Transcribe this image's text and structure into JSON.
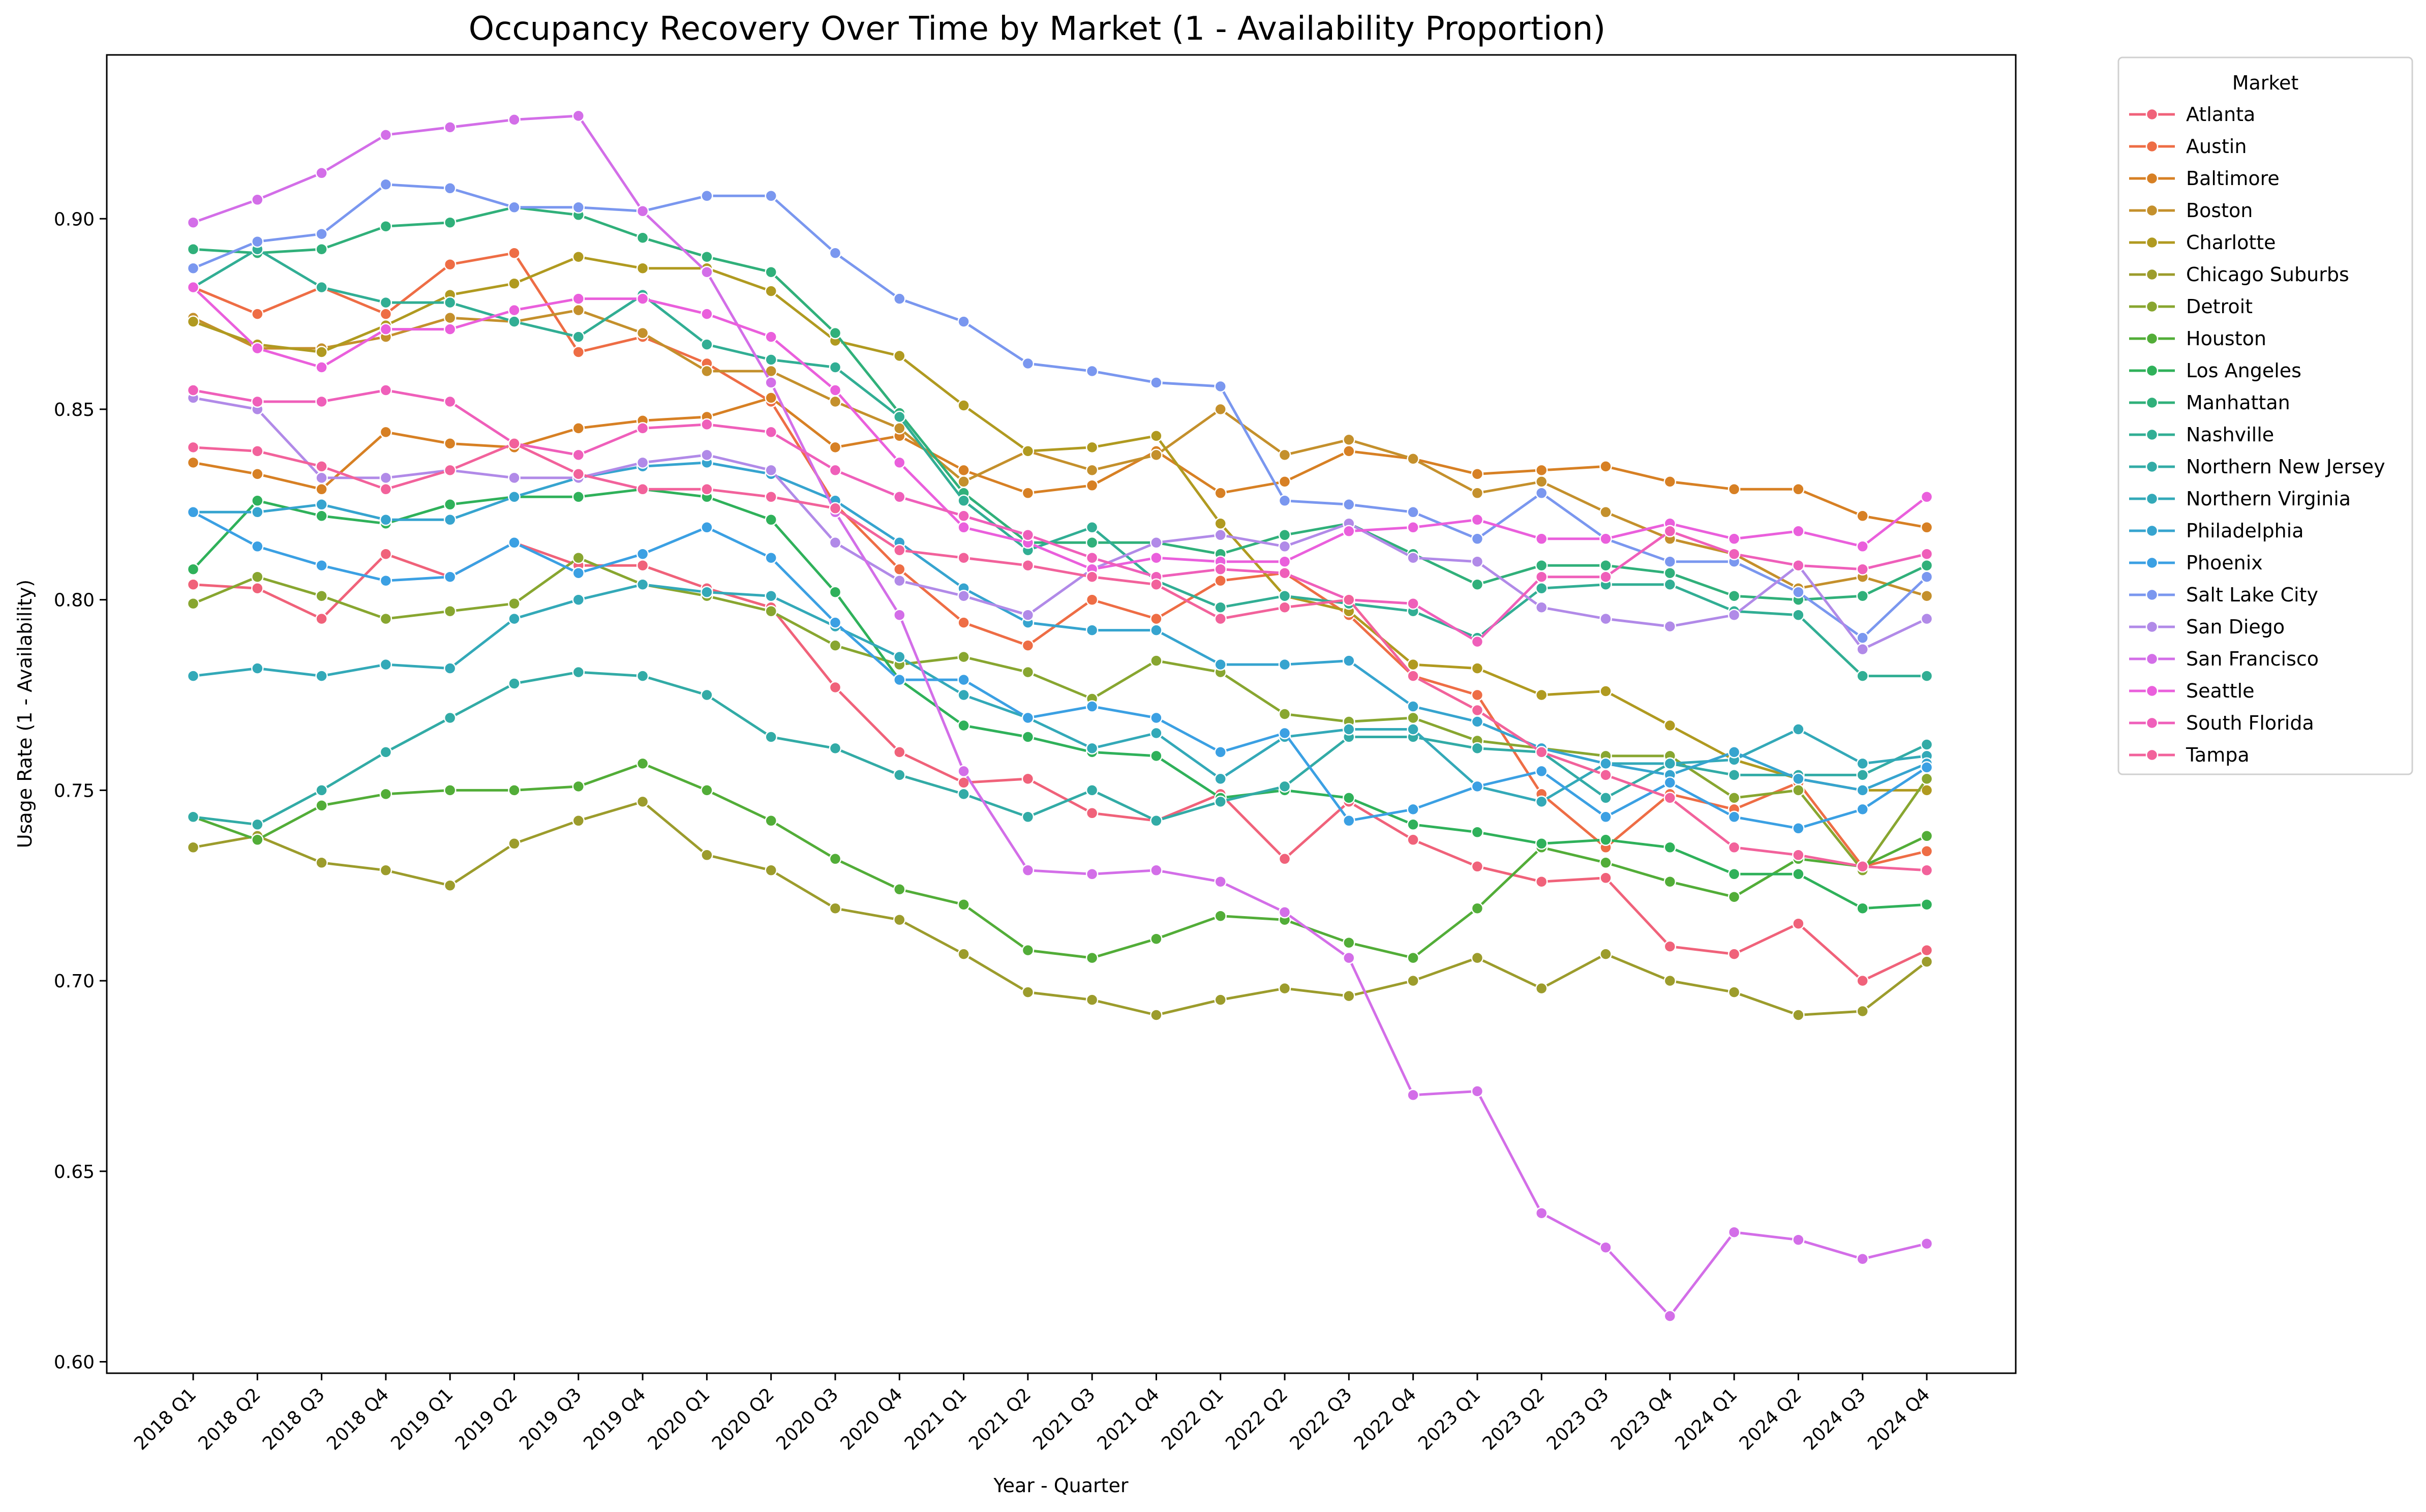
{
  "chart_data": {
    "type": "line",
    "title": "Occupancy Recovery Over Time by Market (1 - Availability Proportion)",
    "xlabel": "Year - Quarter",
    "ylabel": "Usage Rate (1 - Availability)",
    "ylim": [
      0.597,
      0.943
    ],
    "yticks": [
      0.6,
      0.65,
      0.7,
      0.75,
      0.8,
      0.85,
      0.9
    ],
    "ytick_labels": [
      "0.60",
      "0.65",
      "0.70",
      "0.75",
      "0.80",
      "0.85",
      "0.90"
    ],
    "grid": false,
    "legend_title": "Market",
    "legend_position": "outside-top-right",
    "categories": [
      "2018 Q1",
      "2018 Q2",
      "2018 Q3",
      "2018 Q4",
      "2019 Q1",
      "2019 Q2",
      "2019 Q3",
      "2019 Q4",
      "2020 Q1",
      "2020 Q2",
      "2020 Q3",
      "2020 Q4",
      "2021 Q1",
      "2021 Q2",
      "2021 Q3",
      "2021 Q4",
      "2022 Q1",
      "2022 Q2",
      "2022 Q3",
      "2022 Q4",
      "2023 Q1",
      "2023 Q2",
      "2023 Q3",
      "2023 Q4",
      "2024 Q1",
      "2024 Q2",
      "2024 Q3",
      "2024 Q4"
    ],
    "series": [
      {
        "name": "Atlanta",
        "color": "#f0627a",
        "values": [
          0.804,
          0.803,
          0.795,
          0.812,
          0.806,
          0.815,
          0.809,
          0.809,
          0.803,
          0.798,
          0.777,
          0.76,
          0.752,
          0.753,
          0.744,
          0.742,
          0.749,
          0.732,
          0.747,
          0.737,
          0.73,
          0.726,
          0.727,
          0.709,
          0.707,
          0.715,
          0.7,
          0.708
        ]
      },
      {
        "name": "Austin",
        "color": "#ee6d45",
        "values": [
          0.882,
          0.875,
          0.882,
          0.875,
          0.888,
          0.891,
          0.865,
          0.869,
          0.862,
          0.852,
          0.825,
          0.808,
          0.794,
          0.788,
          0.8,
          0.795,
          0.805,
          0.807,
          0.796,
          0.78,
          0.775,
          0.749,
          0.735,
          0.749,
          0.745,
          0.752,
          0.73,
          0.734
        ]
      },
      {
        "name": "Baltimore",
        "color": "#d78024",
        "values": [
          0.836,
          0.833,
          0.829,
          0.844,
          0.841,
          0.84,
          0.845,
          0.847,
          0.848,
          0.853,
          0.84,
          0.843,
          0.834,
          0.828,
          0.83,
          0.839,
          0.828,
          0.831,
          0.839,
          0.837,
          0.833,
          0.834,
          0.835,
          0.831,
          0.829,
          0.829,
          0.822,
          0.819
        ]
      },
      {
        "name": "Boston",
        "color": "#c4902c",
        "values": [
          0.874,
          0.866,
          0.866,
          0.869,
          0.874,
          0.873,
          0.876,
          0.87,
          0.86,
          0.86,
          0.852,
          0.845,
          0.831,
          0.839,
          0.834,
          0.838,
          0.85,
          0.838,
          0.842,
          0.837,
          0.828,
          0.831,
          0.823,
          0.816,
          0.812,
          0.803,
          0.806,
          0.801
        ]
      },
      {
        "name": "Charlotte",
        "color": "#b09a20",
        "values": [
          0.873,
          0.867,
          0.865,
          0.872,
          0.88,
          0.883,
          0.89,
          0.887,
          0.887,
          0.881,
          0.868,
          0.864,
          0.851,
          0.839,
          0.84,
          0.843,
          0.82,
          0.801,
          0.797,
          0.783,
          0.782,
          0.775,
          0.776,
          0.767,
          0.758,
          0.753,
          0.75,
          0.75
        ]
      },
      {
        "name": "Chicago Suburbs",
        "color": "#9c9c2c",
        "values": [
          0.735,
          0.738,
          0.731,
          0.729,
          0.725,
          0.736,
          0.742,
          0.747,
          0.733,
          0.729,
          0.719,
          0.716,
          0.707,
          0.697,
          0.695,
          0.691,
          0.695,
          0.698,
          0.696,
          0.7,
          0.706,
          0.698,
          0.707,
          0.7,
          0.697,
          0.691,
          0.692,
          0.705
        ]
      },
      {
        "name": "Detroit",
        "color": "#88a630",
        "values": [
          0.799,
          0.806,
          0.801,
          0.795,
          0.797,
          0.799,
          0.811,
          0.804,
          0.801,
          0.797,
          0.788,
          0.783,
          0.785,
          0.781,
          0.774,
          0.784,
          0.781,
          0.77,
          0.768,
          0.769,
          0.763,
          0.761,
          0.759,
          0.759,
          0.748,
          0.75,
          0.729,
          0.753
        ]
      },
      {
        "name": "Houston",
        "color": "#52ad38",
        "values": [
          0.743,
          0.737,
          0.746,
          0.749,
          0.75,
          0.75,
          0.751,
          0.757,
          0.75,
          0.742,
          0.732,
          0.724,
          0.72,
          0.708,
          0.706,
          0.711,
          0.717,
          0.716,
          0.71,
          0.706,
          0.719,
          0.735,
          0.731,
          0.726,
          0.722,
          0.732,
          0.73,
          0.738
        ]
      },
      {
        "name": "Los Angeles",
        "color": "#2fb15a",
        "values": [
          0.808,
          0.826,
          0.822,
          0.82,
          0.825,
          0.827,
          0.827,
          0.829,
          0.827,
          0.821,
          0.802,
          0.779,
          0.767,
          0.764,
          0.76,
          0.759,
          0.748,
          0.75,
          0.748,
          0.741,
          0.739,
          0.736,
          0.737,
          0.735,
          0.728,
          0.728,
          0.719,
          0.72
        ]
      },
      {
        "name": "Manhattan",
        "color": "#30b07a",
        "values": [
          0.892,
          0.891,
          0.892,
          0.898,
          0.899,
          0.903,
          0.901,
          0.895,
          0.89,
          0.886,
          0.87,
          0.849,
          0.828,
          0.815,
          0.815,
          0.815,
          0.812,
          0.817,
          0.82,
          0.812,
          0.804,
          0.809,
          0.809,
          0.807,
          0.801,
          0.8,
          0.801,
          0.809
        ]
      },
      {
        "name": "Nashville",
        "color": "#31ae94",
        "values": [
          0.882,
          0.892,
          0.882,
          0.878,
          0.878,
          0.873,
          0.869,
          0.88,
          0.867,
          0.863,
          0.861,
          0.848,
          0.826,
          0.813,
          0.819,
          0.805,
          0.798,
          0.801,
          0.799,
          0.797,
          0.79,
          0.803,
          0.804,
          0.804,
          0.797,
          0.796,
          0.78,
          0.78
        ]
      },
      {
        "name": "Northern New Jersey",
        "color": "#32aba6",
        "values": [
          0.743,
          0.741,
          0.75,
          0.76,
          0.769,
          0.778,
          0.781,
          0.78,
          0.775,
          0.764,
          0.761,
          0.754,
          0.749,
          0.743,
          0.75,
          0.742,
          0.747,
          0.751,
          0.764,
          0.764,
          0.761,
          0.76,
          0.748,
          0.757,
          0.754,
          0.754,
          0.754,
          0.762
        ]
      },
      {
        "name": "Northern Virginia",
        "color": "#33a9b8",
        "values": [
          0.78,
          0.782,
          0.78,
          0.783,
          0.782,
          0.795,
          0.8,
          0.804,
          0.802,
          0.801,
          0.793,
          0.785,
          0.775,
          0.769,
          0.761,
          0.765,
          0.753,
          0.764,
          0.766,
          0.766,
          0.751,
          0.747,
          0.757,
          0.757,
          0.758,
          0.766,
          0.757,
          0.759
        ]
      },
      {
        "name": "Philadelphia",
        "color": "#36a4cf",
        "values": [
          0.823,
          0.823,
          0.825,
          0.821,
          0.821,
          0.827,
          0.832,
          0.835,
          0.836,
          0.833,
          0.826,
          0.815,
          0.803,
          0.794,
          0.792,
          0.792,
          0.783,
          0.783,
          0.784,
          0.772,
          0.768,
          0.761,
          0.757,
          0.754,
          0.76,
          0.753,
          0.75,
          0.757
        ]
      },
      {
        "name": "Phoenix",
        "color": "#3ba0e3",
        "values": [
          0.823,
          0.814,
          0.809,
          0.805,
          0.806,
          0.815,
          0.807,
          0.812,
          0.819,
          0.811,
          0.794,
          0.779,
          0.779,
          0.769,
          0.772,
          0.769,
          0.76,
          0.765,
          0.742,
          0.745,
          0.751,
          0.755,
          0.743,
          0.752,
          0.743,
          0.74,
          0.745,
          0.756
        ]
      },
      {
        "name": "Salt Lake City",
        "color": "#7a97ef",
        "values": [
          0.887,
          0.894,
          0.896,
          0.909,
          0.908,
          0.903,
          0.903,
          0.902,
          0.906,
          0.906,
          0.891,
          0.879,
          0.873,
          0.862,
          0.86,
          0.857,
          0.856,
          0.826,
          0.825,
          0.823,
          0.816,
          0.828,
          0.816,
          0.81,
          0.81,
          0.802,
          0.79,
          0.806
        ]
      },
      {
        "name": "San Diego",
        "color": "#b18ae8",
        "values": [
          0.853,
          0.85,
          0.832,
          0.832,
          0.834,
          0.832,
          0.832,
          0.836,
          0.838,
          0.834,
          0.815,
          0.805,
          0.801,
          0.796,
          0.808,
          0.815,
          0.817,
          0.814,
          0.82,
          0.811,
          0.81,
          0.798,
          0.795,
          0.793,
          0.796,
          0.809,
          0.787,
          0.795
        ]
      },
      {
        "name": "San Francisco",
        "color": "#d36ee8",
        "values": [
          0.899,
          0.905,
          0.912,
          0.922,
          0.924,
          0.926,
          0.927,
          0.902,
          0.886,
          0.857,
          0.823,
          0.796,
          0.755,
          0.729,
          0.728,
          0.729,
          0.726,
          0.718,
          0.706,
          0.67,
          0.671,
          0.639,
          0.63,
          0.612,
          0.634,
          0.632,
          0.627,
          0.631
        ]
      },
      {
        "name": "Seattle",
        "color": "#ea5fdc",
        "values": [
          0.882,
          0.866,
          0.861,
          0.871,
          0.871,
          0.876,
          0.879,
          0.879,
          0.875,
          0.869,
          0.855,
          0.836,
          0.819,
          0.815,
          0.808,
          0.811,
          0.81,
          0.81,
          0.818,
          0.819,
          0.821,
          0.816,
          0.816,
          0.82,
          0.816,
          0.818,
          0.814,
          0.827
        ]
      },
      {
        "name": "South Florida",
        "color": "#ef5fba",
        "values": [
          0.855,
          0.852,
          0.852,
          0.855,
          0.852,
          0.841,
          0.838,
          0.845,
          0.846,
          0.844,
          0.834,
          0.827,
          0.822,
          0.817,
          0.811,
          0.806,
          0.808,
          0.807,
          0.8,
          0.799,
          0.789,
          0.806,
          0.806,
          0.818,
          0.812,
          0.809,
          0.808,
          0.812
        ]
      },
      {
        "name": "Tampa",
        "color": "#f2629b",
        "values": [
          0.84,
          0.839,
          0.835,
          0.829,
          0.834,
          0.841,
          0.833,
          0.829,
          0.829,
          0.827,
          0.824,
          0.813,
          0.811,
          0.809,
          0.806,
          0.804,
          0.795,
          0.798,
          0.8,
          0.78,
          0.771,
          0.76,
          0.754,
          0.748,
          0.735,
          0.733,
          0.73,
          0.729
        ]
      }
    ]
  }
}
